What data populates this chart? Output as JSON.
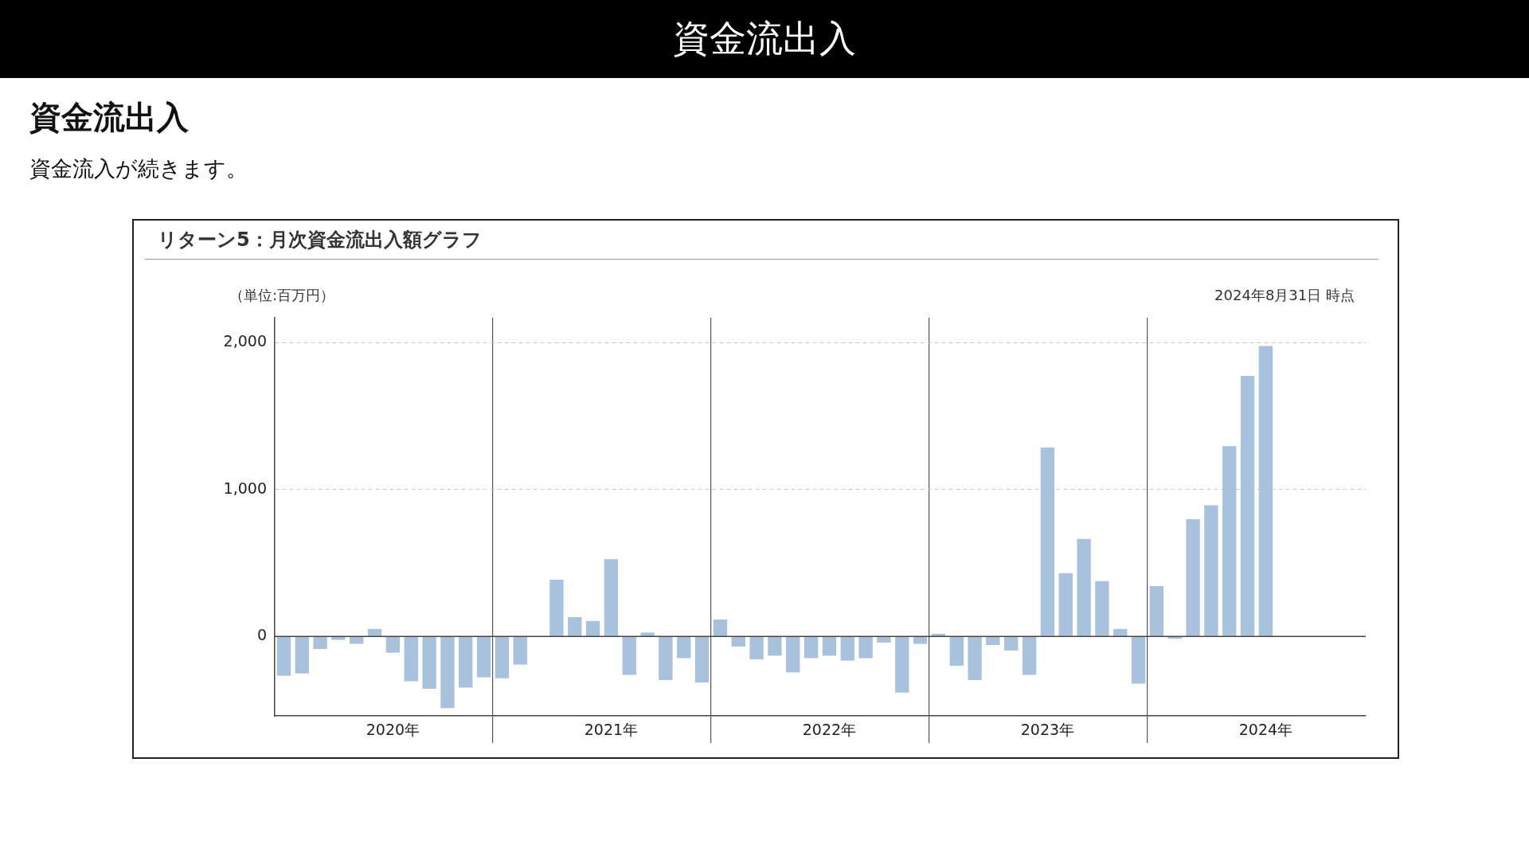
{
  "chart_data": {
    "type": "bar",
    "title": "資金流出入",
    "subtitle": "資金流入が続きます。",
    "annotations": [
      "資金流出入",
      "リターン5：月次資金流出入額グラフ",
      "（単位:百万円）",
      "2024年8月31日 時点"
    ],
    "categories": [
      null,
      null,
      null,
      null,
      null,
      null,
      "2020年",
      null,
      null,
      null,
      null,
      null,
      null,
      null,
      null,
      null,
      null,
      null,
      "2021年",
      null,
      null,
      null,
      null,
      null,
      null,
      null,
      null,
      null,
      null,
      null,
      "2022年",
      null,
      null,
      null,
      null,
      null,
      null,
      null,
      null,
      null,
      null,
      null,
      "2023年",
      null,
      null,
      null,
      null,
      null,
      null,
      null,
      null,
      null,
      null,
      null,
      "2024年",
      null,
      null,
      null,
      null,
      null
    ],
    "values": [
      -267,
      -251,
      -85,
      -23,
      -50,
      52,
      -110,
      -304,
      -356,
      -487,
      -348,
      -277,
      -284,
      -191,
      0,
      387,
      132,
      106,
      526,
      -261,
      27,
      -296,
      -147,
      -313,
      116,
      -68,
      -155,
      -130,
      -244,
      -147,
      -130,
      -164,
      -147,
      -41,
      -381,
      -50,
      19,
      -199,
      -296,
      -58,
      -95,
      -261,
      1286,
      431,
      665,
      377,
      52,
      -321,
      344,
      -15,
      799,
      894,
      1296,
      1775,
      1978,
      null,
      null,
      null,
      null,
      null
    ],
    "color": "#a8c1dd",
    "ylim": [
      -540,
      2170
    ],
    "yticks": [
      0,
      {
        "value": 1000,
        "label": "1,000"
      },
      {
        "value": 2000,
        "label": "2,000"
      }
    ],
    "grid": "y"
  }
}
